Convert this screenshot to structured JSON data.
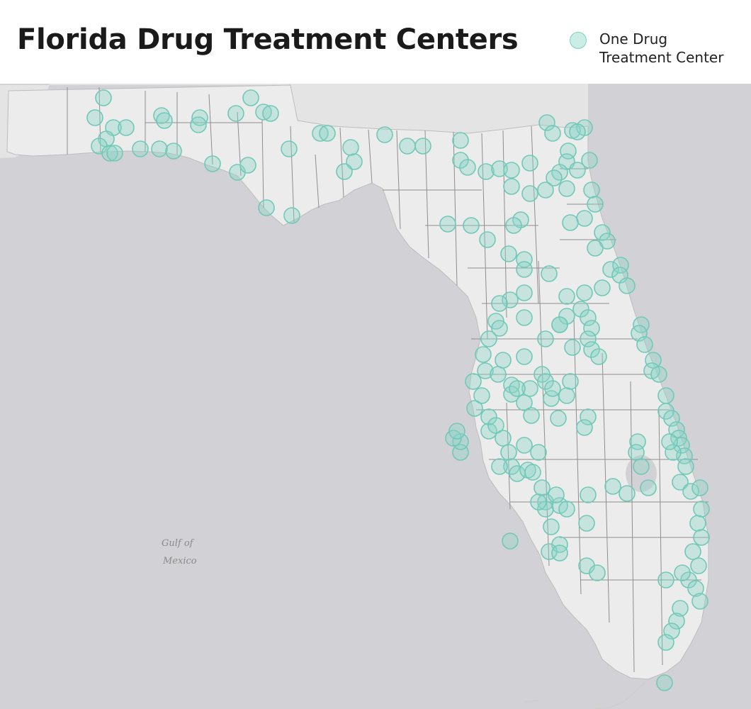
{
  "title": "Florida Drug Treatment Centers",
  "legend": {
    "label": "One Drug\nTreatment Center",
    "marker_fill": "rgba(138,214,200,0.45)",
    "marker_stroke": "#7ccfbf"
  },
  "map": {
    "water_labels": [
      "Gulf of",
      "Mexico"
    ],
    "colors": {
      "water": "#d2d2d6",
      "land": "#ececec",
      "neighbor_land": "#e4e4e4",
      "county_borders": "#8e8e8e",
      "marker_fill": "rgba(138,214,200,0.38)",
      "marker_stroke": "#72c8b7"
    }
  }
}
